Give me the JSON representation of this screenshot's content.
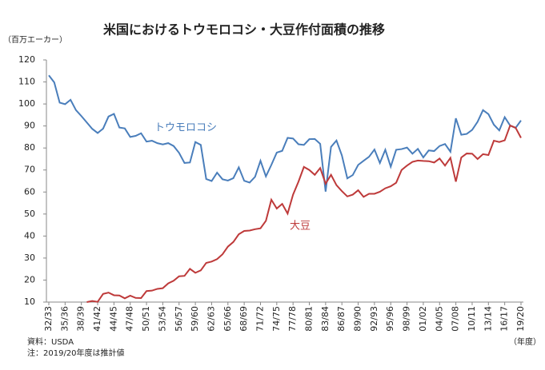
{
  "chart_data": {
    "type": "line",
    "title": "米国におけるトウモロコシ・大豆作付面積の推移",
    "y_label": "（百万エーカー）",
    "x_label": "（年度）",
    "source": "資料：USDA",
    "note": "注：2019/20年度は推計値",
    "categories": [
      "32/33",
      null,
      null,
      "35/36",
      null,
      null,
      "38/39",
      null,
      null,
      "41/42",
      null,
      null,
      "44/45",
      null,
      null,
      "47/48",
      null,
      null,
      "50/51",
      null,
      null,
      "53/54",
      null,
      null,
      "56/57",
      null,
      null,
      "59/60",
      null,
      null,
      "62/63",
      null,
      null,
      "65/66",
      null,
      null,
      "68/69",
      null,
      null,
      "71/72",
      null,
      null,
      "74/75",
      null,
      null,
      "77/78",
      null,
      null,
      "80/81",
      null,
      null,
      "83/84",
      null,
      null,
      "86/87",
      null,
      null,
      "89/90",
      null,
      null,
      "92/93",
      null,
      null,
      "95/96",
      null,
      null,
      "98/99",
      null,
      null,
      "01/02",
      null,
      null,
      "04/05",
      null,
      null,
      "07/08",
      null,
      null,
      "10/11",
      null,
      null,
      "13/14",
      null,
      null,
      "16/17",
      null,
      null,
      "19/20"
    ],
    "series": [
      {
        "name": "トウモロコシ",
        "color": "#4a7ebb",
        "values": [
          113.0,
          109.8,
          100.6,
          99.9,
          101.9,
          97.2,
          94.5,
          91.6,
          88.7,
          86.8,
          88.8,
          94.3,
          95.5,
          89.3,
          88.9,
          85.0,
          85.5,
          86.7,
          82.9,
          83.3,
          82.2,
          81.6,
          82.2,
          80.9,
          77.8,
          73.2,
          73.4,
          82.7,
          81.4,
          65.9,
          65.0,
          68.8,
          65.8,
          65.2,
          66.3,
          71.2,
          65.1,
          64.3,
          66.9,
          74.2,
          67.1,
          72.3,
          77.9,
          78.7,
          84.6,
          84.3,
          81.7,
          81.4,
          84.0,
          84.1,
          81.9,
          60.2,
          80.5,
          83.4,
          76.6,
          66.2,
          67.7,
          72.3,
          74.2,
          76.0,
          79.3,
          73.2,
          79.2,
          71.5,
          79.2,
          79.5,
          80.2,
          77.4,
          79.6,
          75.7,
          78.9,
          78.6,
          80.9,
          81.8,
          78.3,
          93.5,
          86.0,
          86.4,
          88.2,
          91.9,
          97.2,
          95.4,
          90.6,
          88.0,
          94.0,
          90.2,
          89.1,
          92.5
        ]
      },
      {
        "name": "大豆",
        "color": "#be3a3a",
        "values": [
          null,
          null,
          null,
          null,
          null,
          null,
          null,
          10.0,
          10.5,
          10.1,
          13.7,
          14.3,
          13.1,
          13.0,
          11.7,
          12.9,
          11.9,
          11.8,
          15.0,
          15.2,
          16.0,
          16.3,
          18.5,
          19.7,
          21.7,
          21.9,
          25.1,
          23.3,
          24.4,
          27.8,
          28.4,
          29.5,
          31.7,
          35.2,
          37.3,
          40.8,
          42.3,
          42.5,
          43.1,
          43.5,
          46.9,
          56.5,
          52.5,
          54.6,
          50.2,
          58.8,
          64.7,
          71.4,
          70.0,
          67.8,
          70.9,
          63.8,
          67.8,
          63.1,
          60.4,
          58.0,
          58.8,
          60.8,
          57.8,
          59.2,
          59.2,
          60.1,
          61.7,
          62.6,
          64.2,
          70.0,
          72.0,
          73.7,
          74.3,
          74.1,
          74.0,
          73.4,
          75.2,
          72.0,
          75.5,
          64.7,
          75.7,
          77.5,
          77.4,
          75.0,
          77.2,
          76.8,
          83.3,
          82.7,
          83.5,
          90.2,
          89.2,
          84.6
        ]
      }
    ],
    "ylim": [
      10,
      120
    ],
    "yticks": [
      10,
      20,
      30,
      40,
      50,
      60,
      70,
      80,
      90,
      100,
      110,
      120
    ],
    "grid": false
  }
}
